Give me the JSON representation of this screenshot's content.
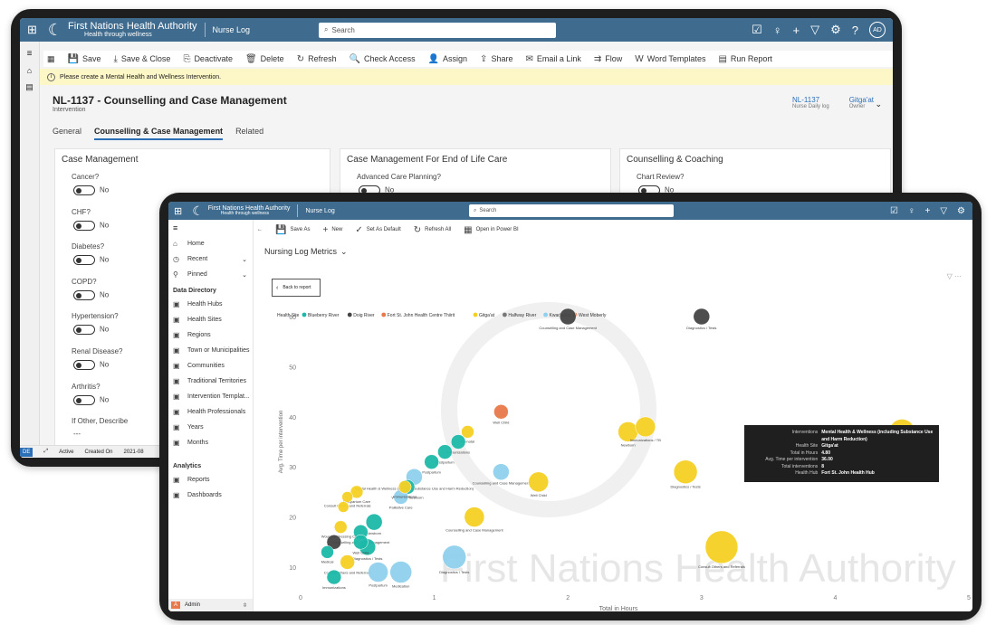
{
  "app": {
    "brand": "First Nations Health Authority",
    "tagline": "Health through wellness",
    "module": "Nurse Log",
    "search_placeholder": "Search"
  },
  "form": {
    "commands": [
      "Save",
      "Save & Close",
      "Deactivate",
      "Delete",
      "Refresh",
      "Check Access",
      "Assign",
      "Share",
      "Email a Link",
      "Flow",
      "Word Templates",
      "Run Report"
    ],
    "notice": "Please create a Mental Health and Wellness Intervention.",
    "title": "NL-1137 - Counselling and Case Management",
    "subtitle": "Intervention",
    "hdr_fields": [
      {
        "value": "NL-1137",
        "label": "Nurse Daily log"
      },
      {
        "value": "Gitga'at",
        "label": "Owner"
      }
    ],
    "tabs": [
      "General",
      "Counselling & Case Management",
      "Related"
    ],
    "sections": [
      {
        "title": "Case Management",
        "fields": [
          {
            "label": "Cancer?",
            "value": "No"
          },
          {
            "label": "CHF?",
            "value": "No"
          },
          {
            "label": "Diabetes?",
            "value": "No"
          },
          {
            "label": "COPD?",
            "value": "No"
          },
          {
            "label": "Hypertension?",
            "value": "No"
          },
          {
            "label": "Renal Disease?",
            "value": "No"
          },
          {
            "label": "Arthritis?",
            "value": "No"
          },
          {
            "label": "If Other, Describe",
            "value": "---"
          }
        ]
      },
      {
        "title": "Case Management For End of Life Care",
        "fields": [
          {
            "label": "Advanced Care Planning?",
            "value": "No"
          }
        ]
      },
      {
        "title": "Counselling & Coaching",
        "fields": [
          {
            "label": "Chart Review?",
            "value": "No"
          }
        ]
      }
    ],
    "status_bar": {
      "badge": "DE",
      "status": "Active",
      "created_label": "Created On",
      "created_value": "2021-08"
    }
  },
  "report": {
    "commands": [
      "Save As",
      "New",
      "Set As Default",
      "Refresh All",
      "Open in Power BI"
    ],
    "title": "Nursing Log Metrics",
    "back": "Back to report",
    "nav": {
      "top": [
        "Home",
        "Recent",
        "Pinned"
      ],
      "group1": "Data Directory",
      "items1": [
        "Health Hubs",
        "Health Sites",
        "Regions",
        "Town or Municipalities",
        "Communities",
        "Traditional Territories",
        "Intervention Templat...",
        "Health Professionals",
        "Years",
        "Months"
      ],
      "group2": "Analytics",
      "items2": [
        "Reports",
        "Dashboards"
      ],
      "user": "Admin"
    },
    "watermark": "First Nations Health Authority",
    "tooltip": [
      {
        "k": "Interventions",
        "v": "Mental Health & Wellness (including Substance Use and Harm Reduction)"
      },
      {
        "k": "Health Site",
        "v": "Gitga'at"
      },
      {
        "k": "Total in Hours",
        "v": "4.80"
      },
      {
        "k": "Avg. Time per intervention",
        "v": "36.00"
      },
      {
        "k": "Total interventions",
        "v": "8"
      },
      {
        "k": "Health Hub",
        "v": "Fort St. John Health Hub"
      }
    ]
  },
  "colors": {
    "titlebar": "#3e6b8e",
    "teal": "#1cb8a8",
    "dark": "#444444",
    "orange": "#e8794a",
    "yellow": "#f5d024",
    "lightblue": "#8fd0ec",
    "gray": "#777777"
  },
  "chart_data": {
    "type": "scatter",
    "xlabel": "Total in Hours",
    "ylabel": "Avg. Time per intervention",
    "xlim": [
      0,
      5
    ],
    "ylim": [
      5,
      60
    ],
    "xticks": [
      0,
      1,
      2,
      3,
      4,
      5
    ],
    "yticks": [
      10,
      20,
      30,
      40,
      50,
      60
    ],
    "legend_title": "Health Site",
    "legend": [
      {
        "name": "Blueberry River",
        "color": "#1cb8a8"
      },
      {
        "name": "Doig River",
        "color": "#444444"
      },
      {
        "name": "Fort St. John Health Centre Thiirit",
        "color": "#e8794a"
      },
      {
        "name": "Gitga'at",
        "color": "#f5d024"
      },
      {
        "name": "Halfway River",
        "color": "#777777"
      },
      {
        "name": "Kwadacha",
        "color": "#8fd0ec"
      },
      {
        "name": "West Moberly",
        "color": "#f08a5d"
      }
    ],
    "points": [
      {
        "x": 2.0,
        "y": 60,
        "s": 9,
        "c": "#444444",
        "label": "Counselling and Case Management"
      },
      {
        "x": 3.0,
        "y": 60,
        "s": 9,
        "c": "#444444",
        "label": "Diagnostics / Tests"
      },
      {
        "x": 1.5,
        "y": 41,
        "s": 8,
        "c": "#e8794a",
        "label": "Well Child"
      },
      {
        "x": 1.25,
        "y": 37,
        "s": 7,
        "c": "#f5d024",
        "label": "Prenatal"
      },
      {
        "x": 1.18,
        "y": 35,
        "s": 8,
        "c": "#1cb8a8",
        "label": "Immunizations"
      },
      {
        "x": 1.08,
        "y": 33,
        "s": 8,
        "c": "#1cb8a8",
        "label": "Postpartum"
      },
      {
        "x": 0.98,
        "y": 31,
        "s": 8,
        "c": "#1cb8a8",
        "label": "Postpartum"
      },
      {
        "x": 1.5,
        "y": 29,
        "s": 9,
        "c": "#8fd0ec",
        "label": "Counselling and Case Management"
      },
      {
        "x": 0.85,
        "y": 28,
        "s": 9,
        "c": "#8fd0ec",
        "label": "Mental Health & Wellness (including Substance Use and Harm Reduction)"
      },
      {
        "x": 0.8,
        "y": 26,
        "s": 8,
        "c": "#1cb8a8",
        "label": "Well Child Newborn"
      },
      {
        "x": 1.78,
        "y": 27,
        "s": 11,
        "c": "#f5d024",
        "label": "Well Child"
      },
      {
        "x": 2.45,
        "y": 37,
        "s": 11,
        "c": "#f5d024",
        "label": "Newborn"
      },
      {
        "x": 2.58,
        "y": 38,
        "s": 11,
        "c": "#f5d024",
        "label": "Immunizations / TB"
      },
      {
        "x": 2.88,
        "y": 29,
        "s": 13,
        "c": "#f5d024",
        "label": "Diagnostics / Tests"
      },
      {
        "x": 4.5,
        "y": 37,
        "s": 14,
        "c": "#f5d024",
        "label": ""
      },
      {
        "x": 3.15,
        "y": 14,
        "s": 18,
        "c": "#f5d024",
        "label": "Consult Others and Referrals"
      },
      {
        "x": 1.3,
        "y": 20,
        "s": 11,
        "c": "#f5d024",
        "label": "Counselling and Case Management"
      },
      {
        "x": 1.15,
        "y": 12,
        "s": 13,
        "c": "#8fd0ec",
        "label": "Diagnostics / Tests"
      },
      {
        "x": 0.75,
        "y": 24,
        "s": 8,
        "c": "#8fd0ec",
        "label": "Palliative Care"
      },
      {
        "x": 0.78,
        "y": 26,
        "s": 7,
        "c": "#f5d024",
        "label": "Immunizations"
      },
      {
        "x": 0.55,
        "y": 19,
        "s": 9,
        "c": "#1cb8a8",
        "label": "Newborn"
      },
      {
        "x": 0.42,
        "y": 25,
        "s": 7,
        "c": "#f5d024",
        "label": "Postpartum Care"
      },
      {
        "x": 0.35,
        "y": 24,
        "s": 6,
        "c": "#f5d024",
        "label": "Consult Others and Referrals"
      },
      {
        "x": 0.32,
        "y": 22,
        "s": 6,
        "c": "#f5d024",
        "label": ""
      },
      {
        "x": 0.3,
        "y": 18,
        "s": 7,
        "c": "#f5d024",
        "label": "Wound & Dressing Care"
      },
      {
        "x": 0.45,
        "y": 17,
        "s": 8,
        "c": "#1cb8a8",
        "label": "Counselling and Case Management"
      },
      {
        "x": 0.25,
        "y": 15,
        "s": 8,
        "c": "#444444",
        "label": ""
      },
      {
        "x": 0.5,
        "y": 14,
        "s": 9,
        "c": "#1cb8a8",
        "label": "Diagnostics / Tests"
      },
      {
        "x": 0.45,
        "y": 15,
        "s": 8,
        "c": "#1cb8a8",
        "label": "Well Child"
      },
      {
        "x": 0.2,
        "y": 13,
        "s": 7,
        "c": "#1cb8a8",
        "label": "Medical"
      },
      {
        "x": 0.35,
        "y": 11,
        "s": 8,
        "c": "#f5d024",
        "label": "Consult Others and Referrals"
      },
      {
        "x": 0.25,
        "y": 8,
        "s": 8,
        "c": "#1cb8a8",
        "label": "Immunizations"
      },
      {
        "x": 0.58,
        "y": 9,
        "s": 11,
        "c": "#8fd0ec",
        "label": "Postpartum"
      },
      {
        "x": 0.75,
        "y": 9,
        "s": 12,
        "c": "#8fd0ec",
        "label": "Medication"
      }
    ]
  }
}
